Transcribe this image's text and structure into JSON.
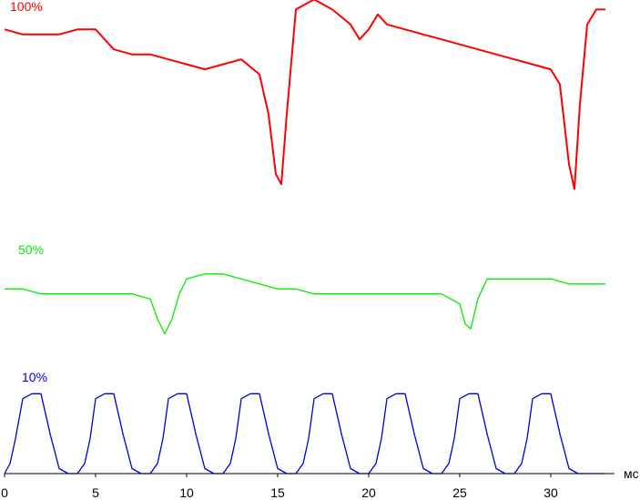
{
  "chart_data": {
    "type": "line",
    "title": "",
    "xlabel": "мс",
    "ylabel": "",
    "xlim": [
      0,
      33.5
    ],
    "x_ticks": [
      0,
      5,
      10,
      15,
      20,
      25,
      30
    ],
    "grid": false,
    "legend": "none",
    "series": [
      {
        "name": "100%",
        "color": "#ff0000",
        "x": [
          0,
          1,
          2,
          3,
          4,
          5,
          6,
          7,
          8,
          9,
          10,
          11,
          12,
          13,
          14,
          14.5,
          14.9,
          15.2,
          15.5,
          16,
          16.5,
          17,
          18,
          19,
          19.5,
          20,
          20.5,
          21,
          22,
          23,
          24,
          25,
          26,
          27,
          28,
          29,
          30,
          30.5,
          31,
          31.3,
          31.6,
          32,
          32.5,
          33
        ],
        "y": [
          0.89,
          0.88,
          0.88,
          0.88,
          0.89,
          0.89,
          0.85,
          0.84,
          0.84,
          0.83,
          0.82,
          0.81,
          0.82,
          0.83,
          0.8,
          0.72,
          0.6,
          0.58,
          0.72,
          0.93,
          0.94,
          0.95,
          0.93,
          0.9,
          0.87,
          0.89,
          0.92,
          0.9,
          0.89,
          0.88,
          0.87,
          0.86,
          0.85,
          0.84,
          0.83,
          0.82,
          0.81,
          0.78,
          0.62,
          0.57,
          0.74,
          0.9,
          0.93,
          0.93
        ]
      },
      {
        "name": "50%",
        "color": "#00ee00",
        "x": [
          0,
          1,
          2,
          3,
          4,
          5,
          6,
          7,
          8,
          8.4,
          8.8,
          9.2,
          9.6,
          10,
          11,
          12,
          13,
          14,
          15,
          16,
          17,
          18,
          19,
          20,
          21,
          22,
          23,
          24,
          25,
          25.3,
          25.6,
          26,
          26.5,
          27,
          28,
          29,
          30,
          31,
          32,
          33
        ],
        "y": [
          0.37,
          0.37,
          0.36,
          0.36,
          0.36,
          0.36,
          0.36,
          0.36,
          0.35,
          0.31,
          0.28,
          0.31,
          0.36,
          0.39,
          0.4,
          0.4,
          0.39,
          0.38,
          0.37,
          0.37,
          0.36,
          0.36,
          0.36,
          0.36,
          0.36,
          0.36,
          0.36,
          0.36,
          0.34,
          0.3,
          0.29,
          0.35,
          0.39,
          0.39,
          0.39,
          0.39,
          0.39,
          0.38,
          0.38,
          0.38
        ]
      },
      {
        "name": "10%",
        "color": "#0000dd",
        "x": [
          0,
          0.3,
          0.6,
          1,
          1.5,
          2,
          2.5,
          3,
          3.5,
          4,
          4.4,
          4.7,
          5,
          5.5,
          6,
          6.5,
          7,
          7.5,
          8,
          8.4,
          8.7,
          9,
          9.5,
          10,
          10.5,
          11,
          11.5,
          12,
          12.4,
          12.7,
          13,
          13.5,
          14,
          14.5,
          15,
          15.5,
          16,
          16.4,
          16.7,
          17,
          17.5,
          18,
          18.5,
          19,
          19.5,
          20,
          20.4,
          20.7,
          21,
          21.5,
          22,
          22.5,
          23,
          23.5,
          24,
          24.4,
          24.7,
          25,
          25.5,
          26,
          26.5,
          27,
          27.5,
          28,
          28.4,
          28.7,
          29,
          29.5,
          30,
          30.5,
          31,
          31.5,
          32,
          33
        ],
        "y": [
          0,
          0.02,
          0.07,
          0.15,
          0.16,
          0.16,
          0.08,
          0.01,
          0,
          0,
          0.02,
          0.07,
          0.15,
          0.16,
          0.16,
          0.08,
          0.01,
          0,
          0,
          0.02,
          0.07,
          0.15,
          0.16,
          0.16,
          0.08,
          0.01,
          0,
          0,
          0.02,
          0.07,
          0.15,
          0.16,
          0.16,
          0.08,
          0.01,
          0,
          0,
          0.02,
          0.07,
          0.15,
          0.16,
          0.16,
          0.08,
          0.01,
          0,
          0,
          0.02,
          0.07,
          0.15,
          0.16,
          0.16,
          0.08,
          0.01,
          0,
          0,
          0.02,
          0.07,
          0.15,
          0.16,
          0.16,
          0.08,
          0.01,
          0,
          0,
          0.02,
          0.07,
          0.15,
          0.16,
          0.16,
          0.08,
          0.01,
          0,
          0,
          0
        ]
      }
    ]
  }
}
